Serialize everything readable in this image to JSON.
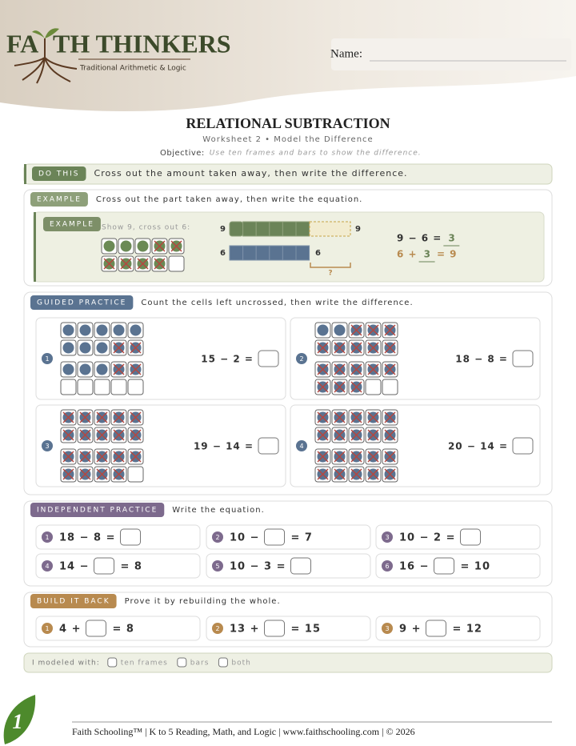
{
  "header": {
    "brand_left": "FA",
    "brand_right": "TH THINKERS",
    "tagline": "Traditional Arithmetic & Logic",
    "name_label": "Name:"
  },
  "title": "RELATIONAL SUBTRACTION",
  "subtitle": "Worksheet 2 • Model the Difference",
  "objective_label": "Objective:",
  "objective": "Use ten frames and bars to show the difference.",
  "do_this": {
    "tag": "DO THIS",
    "text": "Cross out the amount taken away, then write the difference."
  },
  "example": {
    "tag": "EXAMPLE",
    "text": "Cross out the part taken away, then write the equation.",
    "inner_tag": "EXAMPLE",
    "prompt": "Show 9, cross out 6:",
    "bar_top_left": "9",
    "bar_top_right": "9",
    "bar_bottom_left": "6",
    "bar_bottom_right": "6",
    "question": "?",
    "eq1": {
      "before": "9 − 6 =",
      "answer": "3"
    },
    "eq2": {
      "before": "6 +",
      "answer": "3",
      "after": "= 9"
    }
  },
  "guided": {
    "tag": "GUIDED PRACTICE",
    "text": "Count the cells left uncrossed, then write the difference.",
    "problems": [
      {
        "num": "1",
        "eq": "15 − 2 ="
      },
      {
        "num": "2",
        "eq": "18 − 8 ="
      },
      {
        "num": "3",
        "eq": "19 − 14 ="
      },
      {
        "num": "4",
        "eq": "20 − 14 ="
      }
    ]
  },
  "independent": {
    "tag": "INDEPENDENT PRACTICE",
    "text": "Write the equation.",
    "items": [
      {
        "num": "1",
        "before": "18 − 8 ="
      },
      {
        "num": "2",
        "before": "10 −",
        "after": "= 7"
      },
      {
        "num": "3",
        "before": "10 − 2 ="
      },
      {
        "num": "4",
        "before": "14 −",
        "after": "= 8"
      },
      {
        "num": "5",
        "before": "10 − 3 ="
      },
      {
        "num": "6",
        "before": "16 −",
        "after": "= 10"
      }
    ]
  },
  "build": {
    "tag": "BUILD IT BACK",
    "text": "Prove it by rebuilding the whole.",
    "items": [
      {
        "num": "1",
        "before": "4 +",
        "after": "= 8"
      },
      {
        "num": "2",
        "before": "13 +",
        "after": "= 15"
      },
      {
        "num": "3",
        "before": "9 +",
        "after": "= 12"
      }
    ]
  },
  "check": {
    "label": "I modeled with:",
    "options": [
      "ten frames",
      "bars",
      "both"
    ]
  },
  "footer": {
    "text": "Faith Schooling™ | K to 5 Reading, Math, and Logic | www.faithschooling.com | © 2026",
    "page_number": "1"
  }
}
